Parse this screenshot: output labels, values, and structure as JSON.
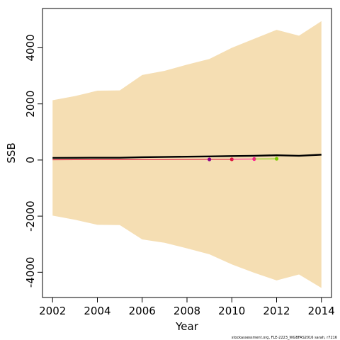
{
  "chart_data": {
    "type": "line",
    "xlabel": "Year",
    "ylabel": "SSB",
    "xlim": [
      2001.55,
      2014.45
    ],
    "ylim": [
      -4900,
      5400
    ],
    "x_ticks": [
      2002,
      2004,
      2006,
      2008,
      2010,
      2012,
      2014
    ],
    "y_ticks": [
      -4000,
      -2000,
      0,
      2000,
      4000
    ],
    "x_tick_labels": [
      "2002",
      "2004",
      "2006",
      "2008",
      "2010",
      "2012",
      "2014"
    ],
    "y_tick_labels": [
      "-4000",
      "-2000",
      "0",
      "2000",
      "4000"
    ],
    "grid": false,
    "confidence_band": {
      "color": "#F5DEB3",
      "x": [
        2002,
        2003,
        2004,
        2005,
        2006,
        2007,
        2008,
        2009,
        2010,
        2011,
        2012,
        2013,
        2014
      ],
      "upper": [
        2130,
        2280,
        2470,
        2480,
        3030,
        3180,
        3400,
        3600,
        4000,
        4320,
        4640,
        4430,
        4950
      ],
      "lower": [
        -1980,
        -2130,
        -2310,
        -2320,
        -2830,
        -2950,
        -3150,
        -3360,
        -3720,
        -4020,
        -4290,
        -4080,
        -4560
      ]
    },
    "series": [
      {
        "color": "#000000",
        "style": "line",
        "x": [
          2002,
          2003,
          2004,
          2005,
          2006,
          2007,
          2008,
          2009,
          2010,
          2011,
          2012,
          2013,
          2014
        ],
        "y": [
          76,
          78,
          82,
          80,
          100,
          110,
          120,
          128,
          140,
          150,
          170,
          150,
          190
        ]
      },
      {
        "color": "#DC143C",
        "style": "line-point",
        "x": [
          2002,
          2003,
          2004,
          2005,
          2006,
          2007,
          2008,
          2009,
          2010
        ],
        "y": [
          8,
          10,
          12,
          14,
          16,
          18,
          20,
          22,
          24
        ]
      },
      {
        "color": "#8B008B",
        "style": "point",
        "x": [
          2009
        ],
        "y": [
          22
        ]
      },
      {
        "color": "#FF1493",
        "style": "line-point",
        "x": [
          2010,
          2011
        ],
        "y": [
          26,
          36
        ]
      },
      {
        "color": "#7CCD00",
        "style": "line-point",
        "x": [
          2011,
          2012
        ],
        "y": [
          40,
          44
        ]
      }
    ],
    "footer_text": "stockassessment.org, FLE-2223_WGBFAS2016 sarah, r7216"
  }
}
